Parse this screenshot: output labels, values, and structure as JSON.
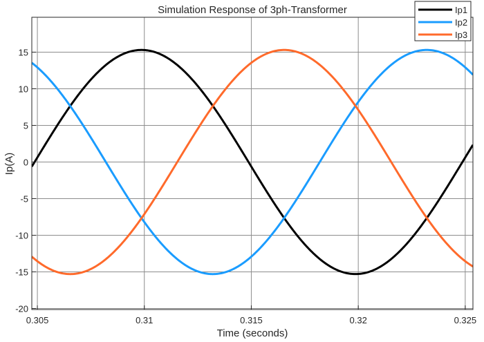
{
  "chart_data": {
    "type": "line",
    "title": "Simulation Response of 3ph-Transformer",
    "xlabel": "Time (seconds)",
    "ylabel": "Ip(A)",
    "xlim": [
      0.30474,
      0.32536
    ],
    "ylim": [
      -20.14,
      19.76
    ],
    "xticks": [
      0.305,
      0.31,
      0.315,
      0.32,
      0.325
    ],
    "xtick_labels": [
      "0.305",
      "0.31",
      "0.315",
      "0.32",
      "0.325"
    ],
    "yticks": [
      -20,
      -15,
      -10,
      -5,
      0,
      5,
      10,
      15
    ],
    "ytick_labels": [
      "-20",
      "-15",
      "-10",
      "-5",
      "0",
      "5",
      "10",
      "15"
    ],
    "grid": true,
    "legend_position": "top-right",
    "series": [
      {
        "name": "Ip1",
        "color": "#000000",
        "amplitude": 15.3,
        "frequency_hz": 50,
        "peak_time": 0.30987
      },
      {
        "name": "Ip2",
        "color": "#1a9cff",
        "amplitude": 15.3,
        "frequency_hz": 50,
        "peak_time": 0.3232
      },
      {
        "name": "Ip3",
        "color": "#ff6a2b",
        "amplitude": 15.3,
        "frequency_hz": 50,
        "peak_time": 0.31654
      }
    ]
  }
}
